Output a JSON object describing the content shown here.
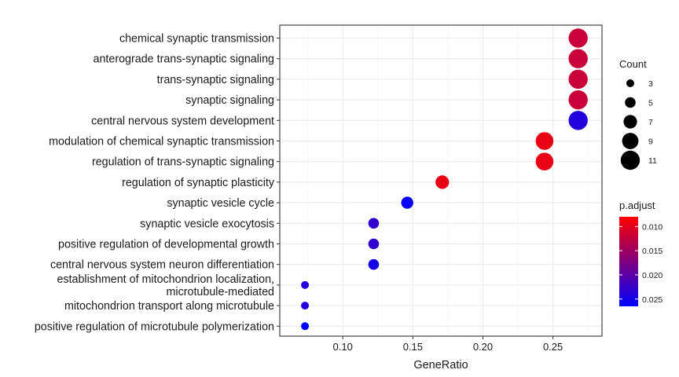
{
  "chart_data": {
    "type": "scatter",
    "xlabel": "GeneRatio",
    "xlim": [
      0.055,
      0.285
    ],
    "x_ticks": [
      0.1,
      0.15,
      0.2,
      0.25
    ],
    "x_tick_labels": [
      "0.10",
      "0.15",
      "0.20",
      "0.25"
    ],
    "grid": true,
    "legend_position": "right",
    "points": [
      {
        "term": "chemical synaptic transmission",
        "x": 0.268,
        "count": 11,
        "p_adjust": 0.012
      },
      {
        "term": "anterograde trans-synaptic signaling",
        "x": 0.268,
        "count": 11,
        "p_adjust": 0.012
      },
      {
        "term": "trans-synaptic signaling",
        "x": 0.268,
        "count": 11,
        "p_adjust": 0.012
      },
      {
        "term": "synaptic signaling",
        "x": 0.268,
        "count": 11,
        "p_adjust": 0.012
      },
      {
        "term": "central nervous system development",
        "x": 0.268,
        "count": 11,
        "p_adjust": 0.024
      },
      {
        "term": "modulation of chemical synaptic transmission",
        "x": 0.244,
        "count": 10,
        "p_adjust": 0.0095
      },
      {
        "term": "regulation of trans-synaptic signaling",
        "x": 0.244,
        "count": 10,
        "p_adjust": 0.0095
      },
      {
        "term": "regulation of synaptic plasticity",
        "x": 0.171,
        "count": 7,
        "p_adjust": 0.0095
      },
      {
        "term": "synaptic vesicle cycle",
        "x": 0.146,
        "count": 6,
        "p_adjust": 0.026
      },
      {
        "term": "synaptic vesicle exocytosis",
        "x": 0.122,
        "count": 5,
        "p_adjust": 0.023
      },
      {
        "term": "positive regulation of developmental growth",
        "x": 0.122,
        "count": 5,
        "p_adjust": 0.023
      },
      {
        "term": "central nervous system neuron differentiation",
        "x": 0.122,
        "count": 5,
        "p_adjust": 0.025
      },
      {
        "term": "establishment of mitochondrion localization,\nmicrotubule-mediated",
        "x": 0.073,
        "count": 3,
        "p_adjust": 0.024
      },
      {
        "term": "mitochondrion transport along microtubule",
        "x": 0.073,
        "count": 3,
        "p_adjust": 0.024
      },
      {
        "term": "positive regulation of microtubule polymerization",
        "x": 0.073,
        "count": 3,
        "p_adjust": 0.0265
      }
    ],
    "size_legend": {
      "title": "Count",
      "values": [
        3,
        5,
        7,
        9,
        11
      ],
      "labels": [
        "3",
        "5",
        "7",
        "9",
        "11"
      ]
    },
    "color_legend": {
      "title": "p.adjust",
      "min": 0.008,
      "max": 0.0265,
      "ticks": [
        0.01,
        0.015,
        0.02,
        0.025
      ],
      "tick_labels": [
        "0.010",
        "0.015",
        "0.020",
        "0.025"
      ],
      "low_color": "#ff0000",
      "high_color": "#0000ff"
    }
  }
}
